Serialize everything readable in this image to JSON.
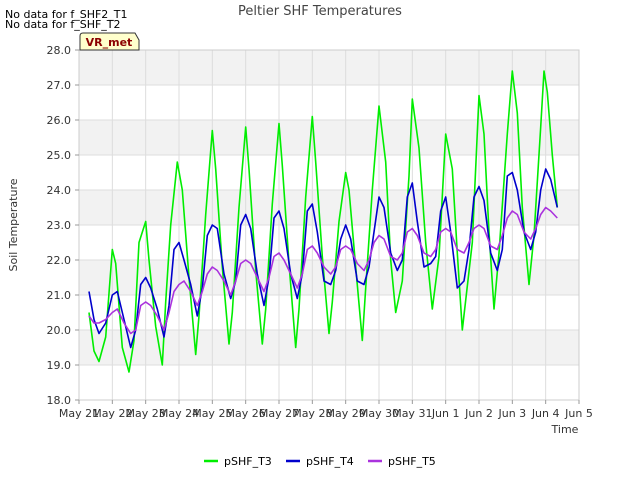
{
  "notices": [
    "No data for f_SHF2_T1",
    "No data for f_SHF_T2"
  ],
  "badge": "VR_met",
  "chart_data": {
    "type": "line",
    "title": "Peltier SHF Temperatures",
    "xlabel": "Time",
    "ylabel": "Soil Temperature",
    "ylim": [
      18.0,
      28.0
    ],
    "yticks": [
      "18.0",
      "19.0",
      "20.0",
      "21.0",
      "22.0",
      "23.0",
      "24.0",
      "25.0",
      "26.0",
      "27.0",
      "28.0"
    ],
    "xlim": [
      0,
      15
    ],
    "xticks": [
      "May 21",
      "May 22",
      "May 23",
      "May 24",
      "May 25",
      "May 26",
      "May 27",
      "May 28",
      "May 29",
      "May 30",
      "May 31",
      "Jun 1",
      "Jun 2",
      "Jun 3",
      "Jun 4",
      "Jun 5"
    ],
    "x_unit": "days since May 21",
    "grid": true,
    "legend_position": "bottom",
    "series": [
      {
        "name": "pSHF_T3",
        "color": "#00ee00",
        "x": [
          0.3,
          0.45,
          0.6,
          0.8,
          1.0,
          1.1,
          1.3,
          1.5,
          1.65,
          1.8,
          2.0,
          2.1,
          2.3,
          2.5,
          2.6,
          2.75,
          2.95,
          3.1,
          3.3,
          3.5,
          3.6,
          3.8,
          4.0,
          4.1,
          4.3,
          4.5,
          4.6,
          4.8,
          5.0,
          5.1,
          5.3,
          5.5,
          5.6,
          5.8,
          6.0,
          6.1,
          6.3,
          6.5,
          6.6,
          6.8,
          7.0,
          7.1,
          7.3,
          7.5,
          7.6,
          7.8,
          8.0,
          8.1,
          8.3,
          8.5,
          8.6,
          8.8,
          9.0,
          9.2,
          9.35,
          9.5,
          9.7,
          9.9,
          10.0,
          10.2,
          10.4,
          10.6,
          10.8,
          11.0,
          11.2,
          11.35,
          11.5,
          11.8,
          12.0,
          12.15,
          12.3,
          12.45,
          12.6,
          12.85,
          13.0,
          13.15,
          13.3,
          13.5,
          13.65,
          13.85,
          13.95,
          14.05,
          14.2,
          14.35
        ],
        "values": [
          20.5,
          19.4,
          19.1,
          19.8,
          22.3,
          21.9,
          19.5,
          18.8,
          19.7,
          22.5,
          23.1,
          22.0,
          20.1,
          19.0,
          20.8,
          23.0,
          24.8,
          24.0,
          21.5,
          19.3,
          20.4,
          23.3,
          25.7,
          24.6,
          21.8,
          19.6,
          20.5,
          23.5,
          25.8,
          24.6,
          21.7,
          19.6,
          20.6,
          23.6,
          25.9,
          24.7,
          21.9,
          19.5,
          20.6,
          23.8,
          26.1,
          24.8,
          22.1,
          19.9,
          20.8,
          23.1,
          24.5,
          24.0,
          21.8,
          19.7,
          21.2,
          24.0,
          26.4,
          24.8,
          22.0,
          20.5,
          21.4,
          24.4,
          26.6,
          25.2,
          22.5,
          20.6,
          22.1,
          25.6,
          24.6,
          22.2,
          20.0,
          22.5,
          26.7,
          25.6,
          22.8,
          20.6,
          22.2,
          25.6,
          27.4,
          26.2,
          23.5,
          21.3,
          22.7,
          25.8,
          27.4,
          26.8,
          25.0,
          23.5
        ]
      },
      {
        "name": "pSHF_T4",
        "color": "#0000cc",
        "x": [
          0.3,
          0.45,
          0.6,
          0.8,
          1.0,
          1.15,
          1.35,
          1.55,
          1.7,
          1.85,
          2.0,
          2.15,
          2.35,
          2.55,
          2.7,
          2.85,
          3.0,
          3.15,
          3.35,
          3.55,
          3.7,
          3.85,
          4.0,
          4.15,
          4.35,
          4.55,
          4.7,
          4.85,
          5.0,
          5.15,
          5.35,
          5.55,
          5.7,
          5.85,
          6.0,
          6.15,
          6.35,
          6.55,
          6.7,
          6.85,
          7.0,
          7.15,
          7.35,
          7.55,
          7.7,
          7.85,
          8.0,
          8.15,
          8.35,
          8.55,
          8.7,
          8.85,
          9.0,
          9.15,
          9.35,
          9.55,
          9.7,
          9.85,
          10.0,
          10.15,
          10.35,
          10.55,
          10.7,
          10.85,
          11.0,
          11.15,
          11.35,
          11.55,
          11.7,
          11.85,
          12.0,
          12.15,
          12.35,
          12.55,
          12.7,
          12.85,
          13.0,
          13.15,
          13.35,
          13.55,
          13.7,
          13.85,
          14.0,
          14.15,
          14.35
        ],
        "values": [
          21.1,
          20.3,
          19.9,
          20.2,
          21.0,
          21.1,
          20.3,
          19.5,
          20.0,
          21.3,
          21.5,
          21.2,
          20.6,
          19.8,
          20.7,
          22.3,
          22.5,
          22.0,
          21.3,
          20.4,
          21.2,
          22.7,
          23.0,
          22.9,
          21.6,
          20.9,
          21.4,
          23.0,
          23.3,
          22.9,
          21.6,
          20.7,
          21.5,
          23.2,
          23.4,
          22.9,
          21.6,
          20.9,
          21.6,
          23.4,
          23.6,
          22.8,
          21.4,
          21.3,
          21.7,
          22.6,
          23.0,
          22.6,
          21.4,
          21.3,
          21.8,
          22.8,
          23.8,
          23.5,
          22.2,
          21.7,
          22.0,
          23.8,
          24.2,
          23.1,
          21.8,
          21.9,
          22.1,
          23.4,
          23.8,
          22.8,
          21.2,
          21.4,
          22.3,
          23.8,
          24.1,
          23.7,
          22.2,
          21.7,
          22.3,
          24.4,
          24.5,
          24.0,
          22.8,
          22.3,
          22.8,
          24.0,
          24.6,
          24.3,
          23.5
        ]
      },
      {
        "name": "pSHF_T5",
        "color": "#aa33dd",
        "x": [
          0.3,
          0.45,
          0.6,
          0.8,
          1.0,
          1.15,
          1.35,
          1.55,
          1.7,
          1.85,
          2.0,
          2.15,
          2.35,
          2.55,
          2.7,
          2.85,
          3.0,
          3.15,
          3.35,
          3.55,
          3.7,
          3.85,
          4.0,
          4.15,
          4.35,
          4.55,
          4.7,
          4.85,
          5.0,
          5.15,
          5.35,
          5.55,
          5.7,
          5.85,
          6.0,
          6.15,
          6.35,
          6.55,
          6.7,
          6.85,
          7.0,
          7.15,
          7.35,
          7.55,
          7.7,
          7.85,
          8.0,
          8.15,
          8.35,
          8.55,
          8.7,
          8.85,
          9.0,
          9.15,
          9.35,
          9.55,
          9.7,
          9.85,
          10.0,
          10.15,
          10.35,
          10.55,
          10.7,
          10.85,
          11.0,
          11.15,
          11.35,
          11.55,
          11.7,
          11.85,
          12.0,
          12.15,
          12.35,
          12.55,
          12.7,
          12.85,
          13.0,
          13.15,
          13.35,
          13.55,
          13.7,
          13.85,
          14.0,
          14.15,
          14.35
        ],
        "values": [
          20.4,
          20.2,
          20.2,
          20.3,
          20.5,
          20.6,
          20.2,
          19.9,
          20.0,
          20.7,
          20.8,
          20.7,
          20.4,
          20.0,
          20.5,
          21.1,
          21.3,
          21.4,
          21.1,
          20.7,
          21.1,
          21.6,
          21.8,
          21.7,
          21.4,
          21.0,
          21.4,
          21.9,
          22.0,
          21.9,
          21.5,
          21.1,
          21.5,
          22.1,
          22.2,
          22.0,
          21.6,
          21.2,
          21.6,
          22.3,
          22.4,
          22.2,
          21.8,
          21.6,
          21.8,
          22.3,
          22.4,
          22.3,
          21.9,
          21.7,
          22.0,
          22.5,
          22.7,
          22.6,
          22.1,
          22.0,
          22.2,
          22.8,
          22.9,
          22.7,
          22.2,
          22.1,
          22.3,
          22.8,
          22.9,
          22.8,
          22.3,
          22.2,
          22.5,
          22.9,
          23.0,
          22.9,
          22.4,
          22.3,
          22.7,
          23.2,
          23.4,
          23.3,
          22.8,
          22.6,
          22.9,
          23.3,
          23.5,
          23.4,
          23.2
        ]
      }
    ]
  }
}
